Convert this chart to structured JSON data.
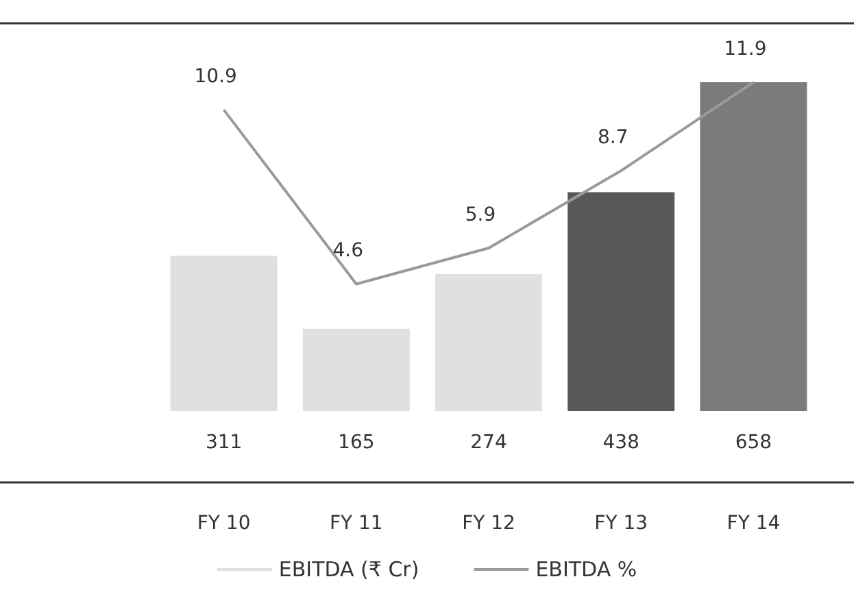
{
  "chart_data": {
    "type": "bar",
    "categories": [
      "FY 10",
      "FY 11",
      "FY 12",
      "FY 13",
      "FY 14"
    ],
    "series": [
      {
        "name": "EBITDA (₹ Cr)",
        "colors": [
          "#e0e0e0",
          "#e0e0e0",
          "#e0e0e0",
          "#58585a",
          "#7b7b7d"
        ],
        "values": [
          311,
          165,
          274,
          438,
          658
        ]
      },
      {
        "name": "EBITDA %",
        "type": "line",
        "axis": "y2",
        "color": "#9a9a9a",
        "values": [
          10.9,
          4.6,
          5.9,
          8.7,
          11.9
        ]
      }
    ],
    "data_labels": true,
    "legend": "bottom",
    "grid": false,
    "marker": "none",
    "tick_labels": "x"
  }
}
